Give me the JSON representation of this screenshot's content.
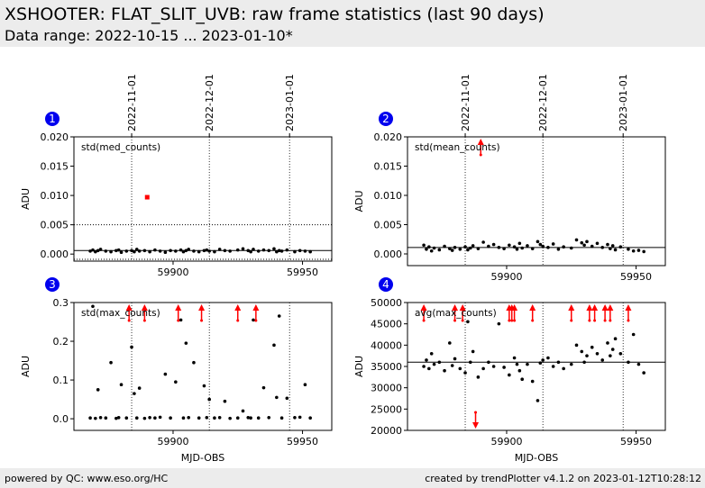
{
  "header": {
    "title": "XSHOOTER: FLAT_SLIT_UVB: raw frame statistics (last 90 days)",
    "subtitle": "Data range: 2022-10-15 ... 2023-01-10*"
  },
  "footer": {
    "left": "powered by QC: www.eso.org/HC",
    "right": "created by trendPlotter v4.1.2 on 2023-01-12T10:28:12"
  },
  "chart_data": [
    {
      "type": "scatter",
      "number": "1",
      "title": "std(med_counts)",
      "ylabel": "ADU",
      "color": "#000000",
      "x": [
        59868,
        59869,
        59870,
        59871,
        59872,
        59874,
        59876,
        59878,
        59879,
        59880,
        59882,
        59884,
        59885,
        59886,
        59887,
        59889,
        59891,
        59893,
        59895,
        59897,
        59899,
        59901,
        59903,
        59904,
        59905,
        59906,
        59908,
        59910,
        59912,
        59913,
        59914,
        59916,
        59918,
        59920,
        59922,
        59925,
        59927,
        59929,
        59930,
        59931,
        59933,
        59935,
        59937,
        59939,
        59940,
        59941,
        59942,
        59944,
        59947,
        59949,
        59951,
        59953
      ],
      "values": [
        0.0005,
        0.0007,
        0.0004,
        0.0006,
        0.0008,
        0.0005,
        0.0004,
        0.0006,
        0.0007,
        0.0003,
        0.0005,
        0.0006,
        0.0004,
        0.0008,
        0.0005,
        0.0006,
        0.0004,
        0.0007,
        0.0005,
        0.0003,
        0.0006,
        0.0005,
        0.0007,
        0.0004,
        0.0006,
        0.0008,
        0.0005,
        0.0004,
        0.0006,
        0.0007,
        0.0005,
        0.0004,
        0.0008,
        0.0006,
        0.0005,
        0.0007,
        0.0009,
        0.0006,
        0.0004,
        0.0008,
        0.0005,
        0.0007,
        0.0006,
        0.0009,
        0.0004,
        0.0006,
        0.0005,
        0.0007,
        0.0004,
        0.0006,
        0.0005,
        0.0004
      ],
      "highlight": {
        "color": "#ff0000",
        "x": [
          59890
        ],
        "values": [
          0.0097
        ]
      },
      "xlim": [
        59861.7,
        59961.3
      ],
      "ylim": [
        -0.0012,
        0.02
      ],
      "xticks": [
        59900,
        59950
      ],
      "yticks": [
        {
          "value": 0.02,
          "label": "0.020"
        },
        {
          "value": 0.015,
          "label": "0.015"
        },
        {
          "value": 0.01,
          "label": "0.010"
        },
        {
          "value": 0.005,
          "label": "0.005"
        },
        {
          "value": 0,
          "label": "0.000"
        }
      ],
      "top_xticks": [
        {
          "value": 59884,
          "label": "2022-11-01"
        },
        {
          "value": 59914,
          "label": "2022-12-01"
        },
        {
          "value": 59945,
          "label": "2023-01-01"
        }
      ],
      "hlines": [
        {
          "value": 0.0006,
          "style": "solid"
        },
        {
          "value": 0.005,
          "style": "dotted"
        },
        {
          "value": -0.0009,
          "style": "dotted"
        }
      ]
    },
    {
      "type": "scatter",
      "number": "2",
      "title": "std(mean_counts)",
      "ylabel": "ADU",
      "color": "#000000",
      "x": [
        59868,
        59869,
        59870,
        59871,
        59872,
        59874,
        59876,
        59878,
        59879,
        59880,
        59882,
        59884,
        59885,
        59886,
        59887,
        59889,
        59891,
        59893,
        59895,
        59897,
        59899,
        59901,
        59903,
        59904,
        59905,
        59906,
        59908,
        59910,
        59912,
        59913,
        59914,
        59916,
        59918,
        59920,
        59922,
        59925,
        59927,
        59929,
        59930,
        59931,
        59933,
        59935,
        59937,
        59939,
        59940,
        59941,
        59942,
        59944,
        59947,
        59949,
        59951,
        59953
      ],
      "values": [
        0.0015,
        0.0008,
        0.0012,
        0.0005,
        0.001,
        0.0007,
        0.0013,
        0.0009,
        0.0006,
        0.0011,
        0.0008,
        0.0012,
        0.0007,
        0.001,
        0.0014,
        0.0009,
        0.002,
        0.0013,
        0.0016,
        0.0011,
        0.0009,
        0.0015,
        0.0012,
        0.0008,
        0.0018,
        0.001,
        0.0014,
        0.0009,
        0.0021,
        0.0016,
        0.0013,
        0.0011,
        0.0017,
        0.0008,
        0.0012,
        0.001,
        0.0024,
        0.0019,
        0.0015,
        0.0021,
        0.0013,
        0.0018,
        0.0011,
        0.0016,
        0.0009,
        0.0014,
        0.0007,
        0.0012,
        0.0008,
        0.0005,
        0.0006,
        0.0004
      ],
      "outliers_high": {
        "color": "#ff0000",
        "x": [
          59890
        ]
      },
      "xlim": [
        59861.7,
        59961.3
      ],
      "ylim": [
        -0.002,
        0.02
      ],
      "xticks": [
        59900,
        59950
      ],
      "yticks": [
        {
          "value": 0.02,
          "label": "0.020"
        },
        {
          "value": 0.015,
          "label": "0.015"
        },
        {
          "value": 0.01,
          "label": "0.010"
        },
        {
          "value": 0.005,
          "label": "0.005"
        },
        {
          "value": 0,
          "label": "0.000"
        }
      ],
      "top_xticks": [
        {
          "value": 59884,
          "label": "2022-11-01"
        },
        {
          "value": 59914,
          "label": "2022-12-01"
        },
        {
          "value": 59945,
          "label": "2023-01-01"
        }
      ],
      "hlines": [
        {
          "value": 0.0011,
          "style": "solid"
        }
      ]
    },
    {
      "type": "scatter",
      "number": "3",
      "title": "std(max_counts)",
      "ylabel": "ADU",
      "xlabel": "MJD-OBS",
      "color": "#000000",
      "x": [
        59868,
        59869,
        59870,
        59871,
        59872,
        59874,
        59876,
        59878,
        59879,
        59880,
        59882,
        59884,
        59885,
        59886,
        59887,
        59889,
        59891,
        59893,
        59895,
        59897,
        59899,
        59901,
        59903,
        59904,
        59905,
        59906,
        59908,
        59910,
        59912,
        59913,
        59914,
        59916,
        59918,
        59920,
        59922,
        59925,
        59927,
        59929,
        59930,
        59931,
        59933,
        59935,
        59937,
        59939,
        59940,
        59941,
        59942,
        59944,
        59947,
        59949,
        59951,
        59953
      ],
      "values": [
        0.002,
        0.29,
        0.001,
        0.075,
        0.003,
        0.002,
        0.145,
        0.001,
        0.003,
        0.088,
        0.002,
        0.185,
        0.065,
        0.002,
        0.079,
        0.001,
        0.003,
        0.002,
        0.004,
        0.115,
        0.002,
        0.095,
        0.255,
        0.002,
        0.195,
        0.003,
        0.145,
        0.002,
        0.085,
        0.003,
        0.05,
        0.002,
        0.003,
        0.045,
        0.001,
        0.002,
        0.02,
        0.003,
        0.002,
        0.255,
        0.002,
        0.08,
        0.003,
        0.19,
        0.055,
        0.265,
        0.002,
        0.053,
        0.003,
        0.004,
        0.088,
        0.002
      ],
      "outliers_high": {
        "color": "#ff0000",
        "x": [
          59883,
          59889,
          59902,
          59911,
          59925,
          59932
        ]
      },
      "xlim": [
        59861.7,
        59961.3
      ],
      "ylim": [
        -0.03,
        0.3
      ],
      "xticks": [
        59900,
        59950
      ],
      "yticks": [
        0.3,
        0.2,
        0.1,
        {
          "value": 0,
          "label": "0.0"
        }
      ],
      "vlines": [
        59884,
        59914,
        59945
      ],
      "hlines": []
    },
    {
      "type": "scatter",
      "number": "4",
      "title": "avg(max_counts)",
      "ylabel": "ADU",
      "xlabel": "MJD-OBS",
      "color": "#000000",
      "x": [
        59868,
        59869,
        59870,
        59871,
        59872,
        59874,
        59876,
        59878,
        59879,
        59880,
        59882,
        59884,
        59885,
        59886,
        59887,
        59889,
        59891,
        59893,
        59895,
        59897,
        59899,
        59901,
        59903,
        59904,
        59905,
        59906,
        59908,
        59910,
        59912,
        59913,
        59914,
        59916,
        59918,
        59920,
        59922,
        59925,
        59927,
        59929,
        59930,
        59931,
        59933,
        59935,
        59937,
        59939,
        59940,
        59941,
        59942,
        59944,
        59947,
        59949,
        59951,
        59953
      ],
      "values": [
        35000,
        36500,
        34500,
        38000,
        35500,
        36000,
        34000,
        40500,
        35200,
        36800,
        34500,
        33500,
        45500,
        36000,
        38500,
        32500,
        34500,
        36000,
        35000,
        45000,
        34800,
        33000,
        37000,
        35500,
        34000,
        32000,
        35500,
        31500,
        27000,
        35800,
        36500,
        37000,
        35000,
        36000,
        34500,
        35500,
        40000,
        38500,
        36000,
        37500,
        39500,
        38000,
        36500,
        40500,
        37500,
        39000,
        41500,
        38000,
        36000,
        42500,
        35500,
        33500
      ],
      "outliers_high": {
        "color": "#ff0000",
        "x": [
          59868,
          59880,
          59883,
          59901,
          59902,
          59903,
          59910,
          59925,
          59932,
          59934,
          59938,
          59940,
          59947
        ]
      },
      "outliers_low": {
        "color": "#ff0000",
        "x": [
          59888
        ]
      },
      "xlim": [
        59861.7,
        59961.3
      ],
      "ylim": [
        20000,
        50000
      ],
      "xticks": [
        59900,
        59950
      ],
      "yticks": [
        50000,
        45000,
        40000,
        35000,
        30000,
        25000,
        20000
      ],
      "vlines": [
        59884,
        59914,
        59945
      ],
      "hlines": [
        {
          "value": 36000,
          "style": "solid"
        }
      ]
    }
  ]
}
